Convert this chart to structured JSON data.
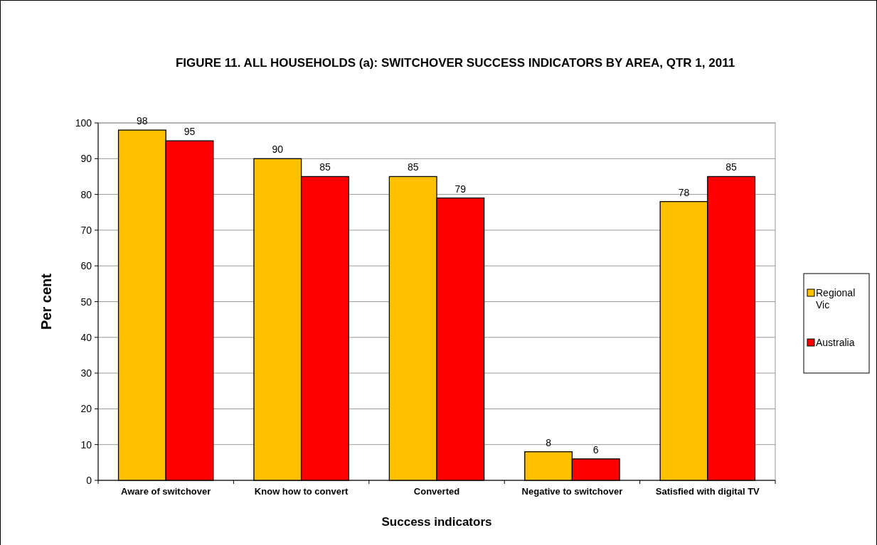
{
  "chart_data": {
    "type": "bar",
    "title": "FIGURE 11. ALL HOUSEHOLDS (a): SWITCHOVER SUCCESS INDICATORS BY AREA, QTR 1, 2011",
    "xlabel": "Success indicators",
    "ylabel": "Per cent",
    "categories": [
      "Aware of switchover",
      "Know how to convert",
      "Converted",
      "Negative to switchover",
      "Satisfied with digital TV"
    ],
    "series": [
      {
        "name": "Regional Vic",
        "color": "#ffc000",
        "values": [
          98,
          90,
          85,
          8,
          78
        ]
      },
      {
        "name": "Australia",
        "color": "#ff0000",
        "values": [
          95,
          85,
          79,
          6,
          85
        ]
      }
    ],
    "ylim": [
      0,
      100
    ],
    "yticks": [
      0,
      10,
      20,
      30,
      40,
      50,
      60,
      70,
      80,
      90,
      100
    ],
    "grid": "y",
    "legend": "right",
    "data_labels": true
  }
}
